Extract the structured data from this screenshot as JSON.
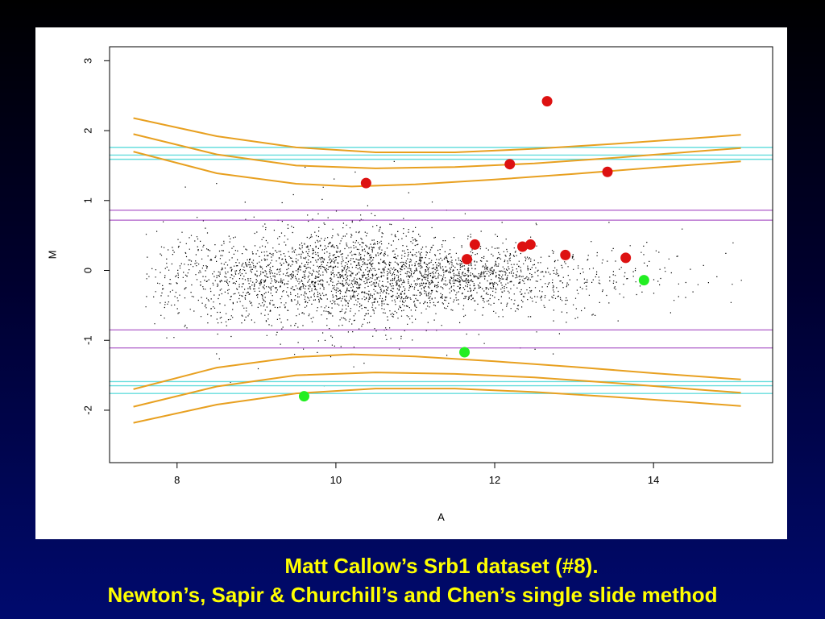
{
  "slide": {
    "caption_line_1": "Matt Callow’s Srb1 dataset (#8).",
    "caption_line_2": "Newton’s, Sapir & Churchill’s and Chen’s single slide method"
  },
  "colors": {
    "background_top": "#000000",
    "background_bottom": "#000a6e",
    "caption": "#ffff00",
    "points": "#000000",
    "highlight_red": "#dd1111",
    "highlight_green": "#22ee22",
    "curve_orange": "#e8a020",
    "line_cyan": "#66dddd",
    "line_purple": "#9933bb"
  },
  "chart_data": {
    "type": "scatter",
    "title": "",
    "xlabel": "A",
    "ylabel": "M",
    "xlim": [
      7.15,
      15.5
    ],
    "ylim": [
      -2.75,
      3.2
    ],
    "x_ticks": [
      8,
      10,
      12,
      14
    ],
    "y_ticks": [
      -2,
      -1,
      0,
      1,
      2,
      3
    ],
    "grid": false,
    "background_cloud": {
      "description_free": true,
      "n_points": 6500,
      "a_range": [
        7.6,
        15.2
      ],
      "m_center": -0.1
    },
    "red_points": [
      {
        "a": 10.38,
        "m": 1.25
      },
      {
        "a": 11.65,
        "m": 0.16
      },
      {
        "a": 11.75,
        "m": 0.37
      },
      {
        "a": 12.19,
        "m": 1.52
      },
      {
        "a": 12.35,
        "m": 0.34
      },
      {
        "a": 12.45,
        "m": 0.37
      },
      {
        "a": 12.66,
        "m": 2.42
      },
      {
        "a": 12.89,
        "m": 0.22
      },
      {
        "a": 13.42,
        "m": 1.41
      },
      {
        "a": 13.65,
        "m": 0.18
      }
    ],
    "green_points": [
      {
        "a": 9.6,
        "m": -1.8
      },
      {
        "a": 11.62,
        "m": -1.17
      },
      {
        "a": 13.88,
        "m": -0.14
      }
    ],
    "cyan_lines": [
      1.76,
      1.65,
      1.59,
      -1.59,
      -1.65,
      -1.76
    ],
    "purple_lines": [
      0.86,
      0.72,
      -0.85,
      -1.11
    ],
    "orange_curves": [
      {
        "points": [
          [
            7.45,
            2.18
          ],
          [
            8.5,
            1.92
          ],
          [
            9.5,
            1.76
          ],
          [
            10.5,
            1.69
          ],
          [
            11.5,
            1.69
          ],
          [
            12.5,
            1.74
          ],
          [
            13.5,
            1.81
          ],
          [
            14.5,
            1.89
          ],
          [
            15.1,
            1.94
          ]
        ]
      },
      {
        "points": [
          [
            7.45,
            1.95
          ],
          [
            8.5,
            1.66
          ],
          [
            9.5,
            1.5
          ],
          [
            10.5,
            1.46
          ],
          [
            11.5,
            1.48
          ],
          [
            12.5,
            1.53
          ],
          [
            13.5,
            1.61
          ],
          [
            14.5,
            1.7
          ],
          [
            15.1,
            1.75
          ]
        ]
      },
      {
        "points": [
          [
            7.45,
            1.7
          ],
          [
            8.5,
            1.39
          ],
          [
            9.5,
            1.24
          ],
          [
            10.2,
            1.2
          ],
          [
            11.0,
            1.23
          ],
          [
            12.0,
            1.3
          ],
          [
            13.0,
            1.38
          ],
          [
            14.0,
            1.47
          ],
          [
            15.1,
            1.56
          ]
        ]
      },
      {
        "points": [
          [
            7.45,
            -1.7
          ],
          [
            8.5,
            -1.39
          ],
          [
            9.5,
            -1.24
          ],
          [
            10.2,
            -1.2
          ],
          [
            11.0,
            -1.23
          ],
          [
            12.0,
            -1.3
          ],
          [
            13.0,
            -1.38
          ],
          [
            14.0,
            -1.47
          ],
          [
            15.1,
            -1.56
          ]
        ]
      },
      {
        "points": [
          [
            7.45,
            -1.95
          ],
          [
            8.5,
            -1.66
          ],
          [
            9.5,
            -1.5
          ],
          [
            10.5,
            -1.46
          ],
          [
            11.5,
            -1.48
          ],
          [
            12.5,
            -1.53
          ],
          [
            13.5,
            -1.61
          ],
          [
            14.5,
            -1.7
          ],
          [
            15.1,
            -1.75
          ]
        ]
      },
      {
        "points": [
          [
            7.45,
            -2.18
          ],
          [
            8.5,
            -1.92
          ],
          [
            9.5,
            -1.76
          ],
          [
            10.5,
            -1.69
          ],
          [
            11.5,
            -1.69
          ],
          [
            12.5,
            -1.74
          ],
          [
            13.5,
            -1.81
          ],
          [
            14.5,
            -1.89
          ],
          [
            15.1,
            -1.94
          ]
        ]
      }
    ]
  }
}
